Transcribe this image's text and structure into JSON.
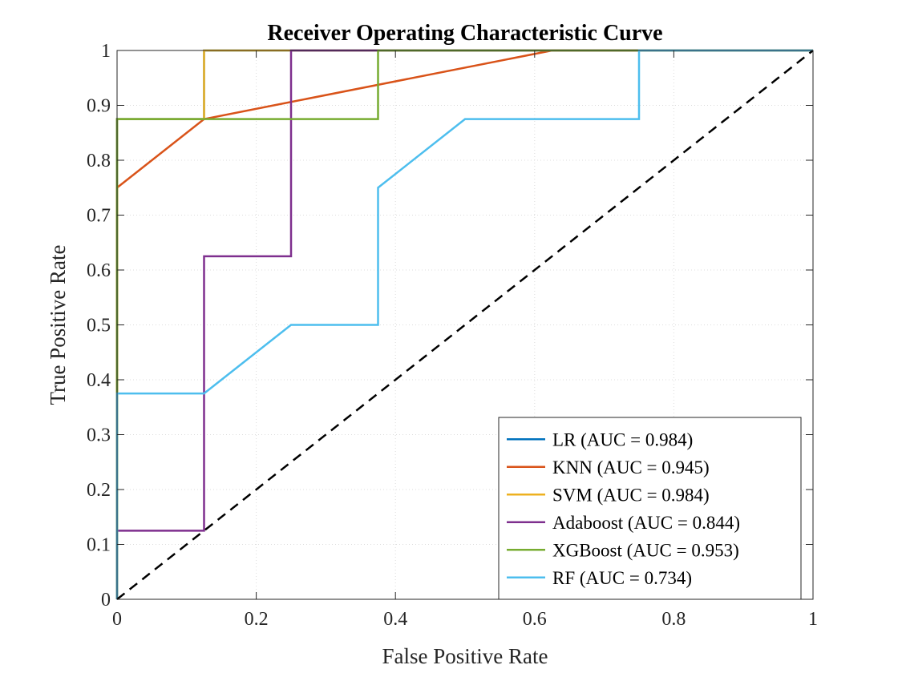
{
  "chart_data": {
    "type": "line",
    "title": "Receiver Operating Characteristic Curve",
    "xlabel": "False Positive Rate",
    "ylabel": "True Positive Rate",
    "xlim": [
      0,
      1
    ],
    "ylim": [
      0,
      1
    ],
    "xticks": [
      0,
      0.2,
      0.4,
      0.6,
      0.8,
      1
    ],
    "xtick_labels": [
      "0",
      "0.2",
      "0.4",
      "0.6",
      "0.8",
      "1"
    ],
    "yticks": [
      0,
      0.1,
      0.2,
      0.3,
      0.4,
      0.5,
      0.6,
      0.7,
      0.8,
      0.9,
      1
    ],
    "ytick_labels": [
      "0",
      "0.1",
      "0.2",
      "0.3",
      "0.4",
      "0.5",
      "0.6",
      "0.7",
      "0.8",
      "0.9",
      "1"
    ],
    "grid": true,
    "legend_position": "bottom-right",
    "series": [
      {
        "name": "LR (AUC = 0.984)",
        "color": "#0072BD",
        "x": [
          0,
          0,
          0.125,
          0.125,
          1
        ],
        "y": [
          0,
          0.875,
          0.875,
          1,
          1
        ]
      },
      {
        "name": "KNN (AUC = 0.945)",
        "color": "#D95319",
        "x": [
          0,
          0,
          0.125,
          0.625,
          1
        ],
        "y": [
          0,
          0.75,
          0.875,
          1,
          1
        ]
      },
      {
        "name": "SVM (AUC = 0.984)",
        "color": "#EDB120",
        "x": [
          0,
          0,
          0.125,
          0.125,
          1
        ],
        "y": [
          0,
          0.875,
          0.875,
          1,
          1
        ]
      },
      {
        "name": "Adaboost (AUC = 0.844)",
        "color": "#7E2F8E",
        "x": [
          0,
          0,
          0.125,
          0.125,
          0.25,
          0.25,
          1
        ],
        "y": [
          0,
          0.125,
          0.125,
          0.625,
          0.625,
          1,
          1
        ]
      },
      {
        "name": "XGBoost (AUC = 0.953)",
        "color": "#77AC30",
        "x": [
          0,
          0,
          0.375,
          0.375,
          1
        ],
        "y": [
          0,
          0.875,
          0.875,
          1,
          1
        ]
      },
      {
        "name": "RF (AUC = 0.734)",
        "color": "#4DBEEE",
        "x": [
          0,
          0,
          0.125,
          0.25,
          0.375,
          0.375,
          0.5,
          0.75,
          0.75,
          1
        ],
        "y": [
          0,
          0.375,
          0.375,
          0.5,
          0.5,
          0.75,
          0.875,
          0.875,
          1,
          1
        ]
      }
    ],
    "reference_line": {
      "x": [
        0,
        1
      ],
      "y": [
        0,
        1
      ],
      "color": "#000000",
      "style": "dashed"
    }
  }
}
